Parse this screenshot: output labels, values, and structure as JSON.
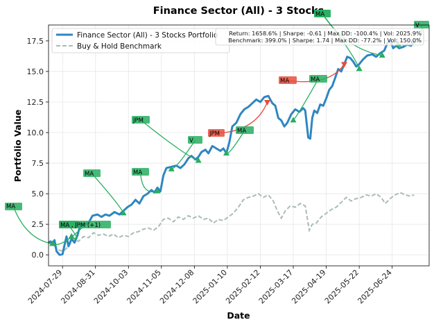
{
  "chart_data": {
    "type": "line",
    "title": "Finance Sector (All) - 3 Stocks",
    "xlabel": "Date",
    "ylabel": "Portfolio Value",
    "x_range": [
      "2024-07-15",
      "2025-07-31"
    ],
    "ylim": [
      -0.9,
      18.8
    ],
    "x_ticks": [
      "2024-07-29",
      "2024-08-31",
      "2024-10-03",
      "2024-11-05",
      "2024-12-08",
      "2025-01-10",
      "2025-02-12",
      "2025-03-17",
      "2025-04-19",
      "2025-05-22",
      "2025-06-24"
    ],
    "y_ticks": [
      0.0,
      2.5,
      5.0,
      7.5,
      10.0,
      12.5,
      15.0,
      17.5
    ],
    "y_tick_labels": [
      "0.0",
      "2.5",
      "5.0",
      "7.5",
      "10.0",
      "12.5",
      "15.0",
      "17.5"
    ],
    "grid": true,
    "legend_position": "top-left",
    "series": [
      {
        "name": "Finance Sector (All) - 3 Stocks Portfolio",
        "color": "#2e86c1",
        "style": "solid",
        "points": [
          [
            "2024-07-15",
            1.0
          ],
          [
            "2024-07-17",
            1.1
          ],
          [
            "2024-07-19",
            0.9
          ],
          [
            "2024-07-21",
            1.2
          ],
          [
            "2024-07-23",
            0.3
          ],
          [
            "2024-07-26",
            0.0
          ],
          [
            "2024-07-29",
            0.05
          ],
          [
            "2024-07-31",
            0.8
          ],
          [
            "2024-08-02",
            1.5
          ],
          [
            "2024-08-04",
            0.7
          ],
          [
            "2024-08-07",
            1.3
          ],
          [
            "2024-08-10",
            1.0
          ],
          [
            "2024-08-13",
            1.6
          ],
          [
            "2024-08-16",
            2.5
          ],
          [
            "2024-08-20",
            2.5
          ],
          [
            "2024-08-24",
            2.6
          ],
          [
            "2024-08-28",
            3.2
          ],
          [
            "2024-09-02",
            3.3
          ],
          [
            "2024-09-06",
            3.1
          ],
          [
            "2024-09-10",
            3.3
          ],
          [
            "2024-09-14",
            3.2
          ],
          [
            "2024-09-19",
            3.5
          ],
          [
            "2024-09-24",
            3.3
          ],
          [
            "2024-09-28",
            3.6
          ],
          [
            "2024-10-02",
            3.9
          ],
          [
            "2024-10-06",
            4.1
          ],
          [
            "2024-10-10",
            4.5
          ],
          [
            "2024-10-14",
            4.2
          ],
          [
            "2024-10-18",
            4.8
          ],
          [
            "2024-10-22",
            5.0
          ],
          [
            "2024-10-26",
            5.3
          ],
          [
            "2024-10-29",
            5.1
          ],
          [
            "2024-11-01",
            5.5
          ],
          [
            "2024-11-04",
            5.2
          ],
          [
            "2024-11-07",
            6.5
          ],
          [
            "2024-11-10",
            7.1
          ],
          [
            "2024-11-15",
            7.2
          ],
          [
            "2024-11-20",
            7.3
          ],
          [
            "2024-11-24",
            7.1
          ],
          [
            "2024-11-28",
            7.4
          ],
          [
            "2024-12-02",
            7.9
          ],
          [
            "2024-12-05",
            8.1
          ],
          [
            "2024-12-09",
            7.8
          ],
          [
            "2024-12-12",
            8.0
          ],
          [
            "2024-12-15",
            8.4
          ],
          [
            "2024-12-19",
            8.6
          ],
          [
            "2024-12-22",
            8.3
          ],
          [
            "2024-12-26",
            8.9
          ],
          [
            "2024-12-30",
            8.7
          ],
          [
            "2025-01-03",
            8.5
          ],
          [
            "2025-01-06",
            8.7
          ],
          [
            "2025-01-09",
            8.3
          ],
          [
            "2025-01-12",
            9.2
          ],
          [
            "2025-01-15",
            10.5
          ],
          [
            "2025-01-19",
            10.8
          ],
          [
            "2025-01-23",
            11.5
          ],
          [
            "2025-01-27",
            11.9
          ],
          [
            "2025-01-31",
            12.1
          ],
          [
            "2025-02-04",
            12.4
          ],
          [
            "2025-02-08",
            12.7
          ],
          [
            "2025-02-12",
            12.5
          ],
          [
            "2025-02-16",
            12.9
          ],
          [
            "2025-02-20",
            13.0
          ],
          [
            "2025-02-24",
            12.4
          ],
          [
            "2025-02-27",
            12.2
          ],
          [
            "2025-03-02",
            11.2
          ],
          [
            "2025-03-05",
            11.0
          ],
          [
            "2025-03-08",
            10.5
          ],
          [
            "2025-03-11",
            10.8
          ],
          [
            "2025-03-15",
            11.5
          ],
          [
            "2025-03-19",
            11.9
          ],
          [
            "2025-03-23",
            11.7
          ],
          [
            "2025-03-27",
            12.0
          ],
          [
            "2025-03-29",
            11.8
          ],
          [
            "2025-04-01",
            9.6
          ],
          [
            "2025-04-03",
            9.5
          ],
          [
            "2025-04-05",
            11.2
          ],
          [
            "2025-04-07",
            11.8
          ],
          [
            "2025-04-10",
            11.6
          ],
          [
            "2025-04-13",
            12.3
          ],
          [
            "2025-04-16",
            12.2
          ],
          [
            "2025-04-19",
            12.8
          ],
          [
            "2025-04-22",
            13.5
          ],
          [
            "2025-04-25",
            13.8
          ],
          [
            "2025-04-28",
            14.5
          ],
          [
            "2025-05-01",
            15.2
          ],
          [
            "2025-05-04",
            15.0
          ],
          [
            "2025-05-07",
            15.6
          ],
          [
            "2025-05-10",
            16.2
          ],
          [
            "2025-05-13",
            16.1
          ],
          [
            "2025-05-16",
            15.8
          ],
          [
            "2025-05-19",
            15.4
          ],
          [
            "2025-05-22",
            15.6
          ],
          [
            "2025-05-26",
            16.0
          ],
          [
            "2025-05-30",
            16.3
          ],
          [
            "2025-06-04",
            16.4
          ],
          [
            "2025-06-08",
            16.2
          ],
          [
            "2025-06-12",
            16.5
          ],
          [
            "2025-06-16",
            16.7
          ],
          [
            "2025-06-19",
            17.3
          ],
          [
            "2025-06-22",
            17.6
          ],
          [
            "2025-06-25",
            16.9
          ],
          [
            "2025-06-28",
            17.1
          ],
          [
            "2025-07-01",
            16.9
          ],
          [
            "2025-07-05",
            17.0
          ],
          [
            "2025-07-09",
            17.2
          ],
          [
            "2025-07-13",
            17.1
          ],
          [
            "2025-07-16",
            17.5
          ]
        ]
      },
      {
        "name": "Buy & Hold Benchmark",
        "color": "#a9bcb5",
        "style": "dashed",
        "points": [
          [
            "2024-07-15",
            1.0
          ],
          [
            "2024-07-20",
            0.8
          ],
          [
            "2024-07-25",
            0.4
          ],
          [
            "2024-07-30",
            0.3
          ],
          [
            "2024-08-04",
            0.7
          ],
          [
            "2024-08-09",
            1.3
          ],
          [
            "2024-08-14",
            1.1
          ],
          [
            "2024-08-19",
            1.5
          ],
          [
            "2024-08-24",
            1.4
          ],
          [
            "2024-08-29",
            1.8
          ],
          [
            "2024-09-03",
            1.6
          ],
          [
            "2024-09-08",
            1.7
          ],
          [
            "2024-09-13",
            1.5
          ],
          [
            "2024-09-18",
            1.7
          ],
          [
            "2024-09-23",
            1.4
          ],
          [
            "2024-09-28",
            1.6
          ],
          [
            "2024-10-03",
            1.5
          ],
          [
            "2024-10-08",
            1.8
          ],
          [
            "2024-10-13",
            1.9
          ],
          [
            "2024-10-18",
            2.1
          ],
          [
            "2024-10-23",
            2.2
          ],
          [
            "2024-10-28",
            2.0
          ],
          [
            "2024-11-02",
            2.3
          ],
          [
            "2024-11-07",
            2.9
          ],
          [
            "2024-11-12",
            3.0
          ],
          [
            "2024-11-17",
            2.7
          ],
          [
            "2024-11-22",
            3.1
          ],
          [
            "2024-11-27",
            2.9
          ],
          [
            "2024-12-02",
            3.2
          ],
          [
            "2024-12-07",
            3.0
          ],
          [
            "2024-12-12",
            3.2
          ],
          [
            "2024-12-17",
            2.9
          ],
          [
            "2024-12-22",
            3.0
          ],
          [
            "2024-12-27",
            2.6
          ],
          [
            "2025-01-01",
            2.9
          ],
          [
            "2025-01-06",
            2.8
          ],
          [
            "2025-01-11",
            3.1
          ],
          [
            "2025-01-16",
            3.4
          ],
          [
            "2025-01-21",
            3.9
          ],
          [
            "2025-01-26",
            4.5
          ],
          [
            "2025-01-31",
            4.7
          ],
          [
            "2025-02-05",
            4.8
          ],
          [
            "2025-02-10",
            5.0
          ],
          [
            "2025-02-15",
            4.7
          ],
          [
            "2025-02-20",
            4.9
          ],
          [
            "2025-02-25",
            4.4
          ],
          [
            "2025-03-01",
            3.6
          ],
          [
            "2025-03-05",
            3.0
          ],
          [
            "2025-03-09",
            3.6
          ],
          [
            "2025-03-14",
            4.0
          ],
          [
            "2025-03-19",
            3.9
          ],
          [
            "2025-03-24",
            4.2
          ],
          [
            "2025-03-29",
            4.0
          ],
          [
            "2025-04-02",
            2.0
          ],
          [
            "2025-04-05",
            2.5
          ],
          [
            "2025-04-09",
            2.6
          ],
          [
            "2025-04-14",
            3.1
          ],
          [
            "2025-04-19",
            3.4
          ],
          [
            "2025-04-24",
            3.7
          ],
          [
            "2025-04-29",
            3.9
          ],
          [
            "2025-05-04",
            4.3
          ],
          [
            "2025-05-09",
            4.7
          ],
          [
            "2025-05-14",
            4.4
          ],
          [
            "2025-05-19",
            4.6
          ],
          [
            "2025-05-24",
            4.7
          ],
          [
            "2025-05-29",
            4.9
          ],
          [
            "2025-06-03",
            4.8
          ],
          [
            "2025-06-08",
            5.0
          ],
          [
            "2025-06-13",
            4.7
          ],
          [
            "2025-06-17",
            4.2
          ],
          [
            "2025-06-22",
            4.6
          ],
          [
            "2025-06-27",
            4.9
          ],
          [
            "2025-07-02",
            5.1
          ],
          [
            "2025-07-07",
            4.9
          ],
          [
            "2025-07-12",
            4.8
          ],
          [
            "2025-07-16",
            4.9
          ]
        ]
      }
    ],
    "stats": {
      "line1": "Return: 1658.6% | Sharpe: -0.61 | Max DD: -100.4% | Vol: 2025.9%",
      "line2": "Benchmark: 399.0% | Sharpe: 1.74 | Max DD: -77.2% | Vol: 150.0%"
    },
    "annotations": [
      {
        "label": "MA",
        "kind": "buy",
        "color": "#27ae60",
        "marker_date": "2024-07-19",
        "marker_value": 0.9,
        "label_anchor": "left"
      },
      {
        "label": "MA",
        "kind": "buy",
        "color": "#27ae60",
        "marker_date": "2024-08-07",
        "marker_value": 1.5,
        "label_anchor": "left"
      },
      {
        "label": "MA , JPM (+1)",
        "kind": "buy",
        "color": "#27ae60",
        "marker_date": "2024-07-19",
        "marker_value": 0.9,
        "label_anchor": "left"
      },
      {
        "label": "MA",
        "kind": "buy",
        "color": "#27ae60",
        "marker_date": "2024-09-28",
        "marker_value": 3.4,
        "label_anchor": "left"
      },
      {
        "label": "MA",
        "kind": "buy",
        "color": "#27ae60",
        "marker_date": "2024-11-01",
        "marker_value": 5.2,
        "label_anchor": "left"
      },
      {
        "label": "JPM",
        "kind": "buy",
        "color": "#27ae60",
        "marker_date": "2024-12-12",
        "marker_value": 7.7,
        "label_anchor": "left"
      },
      {
        "label": "V",
        "kind": "buy",
        "color": "#27ae60",
        "marker_date": "2024-11-15",
        "marker_value": 7.0,
        "label_anchor": "left"
      },
      {
        "label": "JPM",
        "kind": "sell",
        "color": "#e74c3c",
        "marker_date": "2025-02-19",
        "marker_value": 12.5,
        "label_anchor": "left"
      },
      {
        "label": "MA",
        "kind": "buy",
        "color": "#27ae60",
        "marker_date": "2025-01-09",
        "marker_value": 8.3,
        "label_anchor": "left"
      },
      {
        "label": "MA",
        "kind": "sell",
        "color": "#e74c3c",
        "marker_date": "2025-05-07",
        "marker_value": 15.6,
        "label_anchor": "left"
      },
      {
        "label": "MA",
        "kind": "buy",
        "color": "#27ae60",
        "marker_date": "2025-03-17",
        "marker_value": 11.0,
        "label_anchor": "left"
      },
      {
        "label": "MA",
        "kind": "buy",
        "color": "#27ae60",
        "marker_date": "2025-05-22",
        "marker_value": 15.2,
        "label_anchor": "left"
      },
      {
        "label": "MA",
        "kind": "buy",
        "color": "#27ae60",
        "marker_date": "2025-06-14",
        "marker_value": 16.3,
        "label_anchor": "left"
      },
      {
        "label": "V",
        "kind": "buy",
        "color": "#27ae60",
        "marker_date": "2025-06-30",
        "marker_value": 17.2,
        "label_anchor": "left"
      }
    ]
  }
}
